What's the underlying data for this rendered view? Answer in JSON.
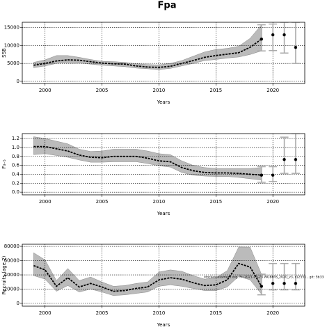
{
  "title": "Fpa",
  "chart_data": [
    {
      "type": "line",
      "ylabel": "SSB",
      "xlabel": "Years",
      "x": [
        1999,
        2000,
        2001,
        2002,
        2003,
        2004,
        2005,
        2006,
        2007,
        2008,
        2009,
        2010,
        2011,
        2012,
        2013,
        2014,
        2015,
        2016,
        2017,
        2018,
        2019
      ],
      "values": [
        4500,
        5000,
        5700,
        6000,
        5900,
        5500,
        5100,
        4900,
        4800,
        4300,
        4000,
        3900,
        4200,
        5000,
        5800,
        6700,
        7200,
        7600,
        8000,
        9500,
        11800
      ],
      "upper": [
        5300,
        6000,
        7200,
        7200,
        6700,
        6100,
        5600,
        5500,
        5300,
        4900,
        4700,
        4600,
        5000,
        5800,
        7000,
        8200,
        8900,
        9200,
        9800,
        12000,
        15800
      ],
      "lower": [
        3800,
        4300,
        5000,
        5200,
        5100,
        4800,
        4500,
        4300,
        4100,
        3700,
        3500,
        3300,
        3600,
        4300,
        5000,
        5800,
        6100,
        6500,
        6800,
        7500,
        8500
      ],
      "projection": {
        "x": [
          2019,
          2020,
          2021,
          2022
        ],
        "values": [
          11800,
          13000,
          13000,
          9500
        ],
        "lower": [
          8500,
          8600,
          7900,
          5000
        ],
        "upper": [
          15800,
          16000,
          16500,
          16500
        ]
      },
      "color": "#000000",
      "band_color": "#bbbbbb",
      "projection_color": "#aaaaaa",
      "xlim": [
        1998,
        2022.8
      ],
      "xticks": [
        2000,
        2005,
        2010,
        2015,
        2020
      ],
      "ylim": [
        -600,
        16500
      ],
      "yticks": [
        0,
        5000,
        10000,
        15000
      ],
      "grid": true
    },
    {
      "type": "line",
      "ylabel": "F₃₋₅",
      "xlabel": "Years",
      "x": [
        1999,
        2000,
        2001,
        2002,
        2003,
        2004,
        2005,
        2006,
        2007,
        2008,
        2009,
        2010,
        2011,
        2012,
        2013,
        2014,
        2015,
        2016,
        2017,
        2018,
        2019
      ],
      "values": [
        1.02,
        1.02,
        0.97,
        0.92,
        0.83,
        0.78,
        0.77,
        0.8,
        0.8,
        0.8,
        0.76,
        0.7,
        0.68,
        0.55,
        0.48,
        0.44,
        0.43,
        0.43,
        0.42,
        0.4,
        0.38
      ],
      "upper": [
        1.24,
        1.2,
        1.14,
        1.08,
        0.96,
        0.91,
        0.92,
        0.96,
        0.96,
        0.96,
        0.92,
        0.86,
        0.84,
        0.7,
        0.6,
        0.55,
        0.53,
        0.53,
        0.53,
        0.53,
        0.55
      ],
      "lower": [
        0.84,
        0.86,
        0.82,
        0.78,
        0.72,
        0.67,
        0.67,
        0.68,
        0.68,
        0.68,
        0.64,
        0.59,
        0.56,
        0.44,
        0.38,
        0.36,
        0.35,
        0.35,
        0.33,
        0.3,
        0.27
      ],
      "projection": {
        "x": [
          2019,
          2020,
          2021,
          2022
        ],
        "values": [
          0.38,
          0.38,
          0.73,
          0.73
        ],
        "lower": [
          0.22,
          0.24,
          0.42,
          0.42
        ],
        "upper": [
          0.57,
          0.57,
          1.23,
          1.31
        ]
      },
      "color": "#000000",
      "band_color": "#bbbbbb",
      "projection_color": "#aaaaaa",
      "xlim": [
        1998,
        2022.8
      ],
      "xticks": [
        2000,
        2005,
        2010,
        2015,
        2020
      ],
      "ylim": [
        -0.06,
        1.31
      ],
      "yticks": [
        {
          "value": 0,
          "label": "0.0"
        },
        0.2,
        0.4,
        0.6,
        0.8,
        {
          "value": 1,
          "label": "1.0"
        },
        1.2
      ],
      "grid": true
    },
    {
      "type": "line",
      "ylabel": "Recruits (age 2)",
      "xlabel": "Years",
      "annotation": "stockassessment.org, Fri 2021-03-23 WGBFAS_2020_v3, r12551 , git: 5b33",
      "x": [
        1999,
        2000,
        2001,
        2002,
        2003,
        2004,
        2005,
        2006,
        2007,
        2008,
        2009,
        2010,
        2011,
        2012,
        2013,
        2014,
        2015,
        2016,
        2017,
        2018,
        2019
      ],
      "values": [
        53000,
        47000,
        24000,
        36000,
        23000,
        28000,
        23000,
        17000,
        18000,
        21000,
        23000,
        33000,
        36000,
        34000,
        29000,
        25000,
        26000,
        33000,
        56000,
        51000,
        24000
      ],
      "upper": [
        71000,
        61000,
        32000,
        49000,
        32000,
        37000,
        30000,
        24000,
        25000,
        28000,
        30000,
        44000,
        47000,
        45000,
        39000,
        34000,
        36000,
        46000,
        79000,
        79000,
        41000
      ],
      "lower": [
        39000,
        34000,
        17000,
        25000,
        16000,
        20000,
        16000,
        11000,
        12000,
        14000,
        16000,
        24000,
        26000,
        24000,
        21000,
        18000,
        18000,
        23000,
        38000,
        33000,
        13000
      ],
      "projection": {
        "x": [
          2019,
          2020,
          2021,
          2022
        ],
        "values": [
          24000,
          28000,
          28000,
          28000
        ],
        "lower": [
          12000,
          19000,
          19000,
          19000
        ],
        "upper": [
          41000,
          56000,
          56000,
          56000
        ]
      },
      "color": "#000000",
      "band_color": "#bbbbbb",
      "projection_color": "#aaaaaa",
      "xlim": [
        1998,
        2022.8
      ],
      "xticks": [
        2000,
        2005,
        2010,
        2015,
        2020
      ],
      "ylim": [
        -3900,
        83000
      ],
      "yticks": [
        0,
        20000,
        40000,
        60000,
        80000
      ],
      "grid": true
    }
  ]
}
